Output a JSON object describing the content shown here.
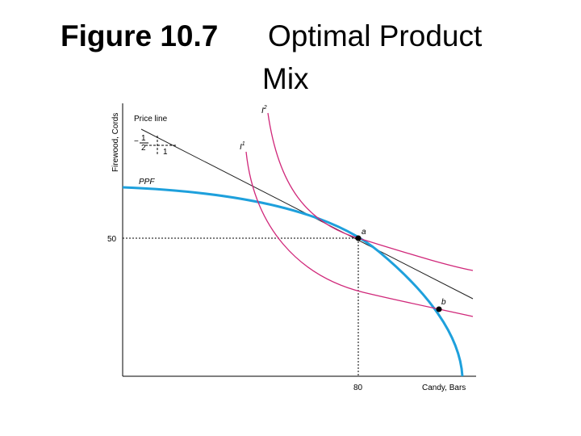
{
  "title": {
    "figure": "Figure 10.7",
    "line1": "Optimal Product",
    "line2": "Mix"
  },
  "diagram": {
    "y_axis_label": "Firewood, Cords",
    "x_axis_label": "Candy, Bars",
    "y_tick": "50",
    "x_tick": "80",
    "price_line_label": "Price line",
    "ppf_label": "PPF",
    "indifference_1": {
      "letter": "I",
      "index": "1"
    },
    "indifference_2": {
      "letter": "I",
      "index": "2"
    },
    "point_a": "a",
    "point_b": "b",
    "slope": {
      "sign": "−",
      "numerator": "1",
      "denominator": "2",
      "run": "1"
    }
  }
}
